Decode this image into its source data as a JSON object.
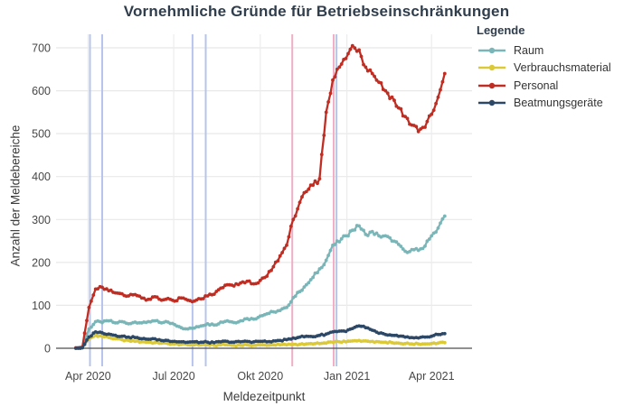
{
  "title": "Vornehmliche Gründe für Betriebseinschränkungen",
  "legend": {
    "title": "Legende"
  },
  "chart_data": {
    "type": "line",
    "title": "Vornehmliche Gründe für Betriebseinschränkungen",
    "xlabel": "Meldezeitpunkt",
    "ylabel": "Anzahl der Meldebereiche",
    "ylim": [
      0,
      700
    ],
    "yticks": [
      0,
      100,
      200,
      300,
      400,
      500,
      600,
      700
    ],
    "xlim": [
      "2020-02-27",
      "2021-05-14"
    ],
    "xticks": [
      {
        "label": "Apr 2020",
        "date": "2020-04-01"
      },
      {
        "label": "Jul 2020",
        "date": "2020-07-01"
      },
      {
        "label": "Okt 2020",
        "date": "2020-10-01"
      },
      {
        "label": "Jan 2021",
        "date": "2021-01-01"
      },
      {
        "label": "Apr 2021",
        "date": "2021-04-01"
      }
    ],
    "grid": true,
    "legend_position": "right",
    "event_lines": [
      {
        "date": "2020-04-03",
        "color": "#b7c4ed"
      },
      {
        "date": "2020-04-16",
        "color": "#b7c4ed"
      },
      {
        "date": "2020-07-21",
        "color": "#b7c4ed"
      },
      {
        "date": "2020-08-04",
        "color": "#b7c4ed"
      },
      {
        "date": "2020-11-04",
        "color": "#f2aec6"
      },
      {
        "date": "2020-12-18",
        "color": "#f2aec6"
      },
      {
        "date": "2020-12-21",
        "color": "#b7c4ed"
      }
    ],
    "x": [
      "2020-03-19",
      "2020-03-26",
      "2020-04-02",
      "2020-04-09",
      "2020-04-16",
      "2020-04-23",
      "2020-04-30",
      "2020-05-07",
      "2020-05-14",
      "2020-05-21",
      "2020-05-28",
      "2020-06-04",
      "2020-06-11",
      "2020-06-18",
      "2020-06-25",
      "2020-07-02",
      "2020-07-09",
      "2020-07-16",
      "2020-07-23",
      "2020-07-30",
      "2020-08-06",
      "2020-08-13",
      "2020-08-20",
      "2020-08-27",
      "2020-09-03",
      "2020-09-10",
      "2020-09-17",
      "2020-09-24",
      "2020-10-01",
      "2020-10-08",
      "2020-10-15",
      "2020-10-22",
      "2020-10-29",
      "2020-11-05",
      "2020-11-12",
      "2020-11-19",
      "2020-11-26",
      "2020-12-03",
      "2020-12-10",
      "2020-12-17",
      "2020-12-24",
      "2020-12-31",
      "2021-01-07",
      "2021-01-14",
      "2021-01-21",
      "2021-01-28",
      "2021-02-04",
      "2021-02-11",
      "2021-02-18",
      "2021-02-25",
      "2021-03-04",
      "2021-03-11",
      "2021-03-18",
      "2021-03-25",
      "2021-04-01",
      "2021-04-08",
      "2021-04-15"
    ],
    "series": [
      {
        "name": "Raum",
        "color": "#7ab6b8",
        "values": [
          0,
          2,
          45,
          62,
          60,
          64,
          59,
          62,
          57,
          61,
          59,
          62,
          64,
          59,
          61,
          55,
          48,
          45,
          47,
          52,
          57,
          54,
          61,
          64,
          60,
          64,
          69,
          68,
          75,
          80,
          85,
          88,
          95,
          118,
          132,
          148,
          165,
          185,
          205,
          240,
          248,
          262,
          275,
          285,
          265,
          272,
          262,
          262,
          250,
          242,
          226,
          230,
          228,
          238,
          262,
          280,
          308
        ]
      },
      {
        "name": "Verbrauchsmaterial",
        "color": "#dcc937",
        "values": [
          0,
          1,
          22,
          30,
          28,
          25,
          22,
          20,
          18,
          16,
          15,
          14,
          13,
          12,
          11,
          10,
          9,
          8,
          8,
          8,
          8,
          7,
          8,
          8,
          7,
          7,
          8,
          7,
          8,
          7,
          8,
          8,
          8,
          9,
          9,
          10,
          10,
          11,
          12,
          14,
          15,
          15,
          17,
          18,
          17,
          16,
          15,
          14,
          13,
          12,
          11,
          10,
          10,
          10,
          11,
          12,
          13
        ]
      },
      {
        "name": "Personal",
        "color": "#c02d22",
        "values": [
          1,
          3,
          95,
          138,
          142,
          134,
          129,
          127,
          122,
          125,
          117,
          114,
          120,
          112,
          116,
          110,
          117,
          112,
          110,
          115,
          122,
          126,
          140,
          148,
          145,
          152,
          156,
          150,
          158,
          168,
          190,
          215,
          240,
          300,
          340,
          365,
          380,
          395,
          550,
          625,
          655,
          675,
          705,
          695,
          655,
          640,
          620,
          600,
          585,
          560,
          540,
          520,
          505,
          515,
          545,
          585,
          640
        ]
      },
      {
        "name": "Beatmungsgeräte",
        "color": "#2d4866",
        "values": [
          0,
          1,
          26,
          38,
          36,
          33,
          30,
          28,
          26,
          25,
          22,
          21,
          22,
          18,
          18,
          16,
          15,
          14,
          15,
          14,
          14,
          13,
          15,
          16,
          14,
          15,
          16,
          15,
          16,
          15,
          17,
          18,
          20,
          24,
          26,
          28,
          27,
          30,
          33,
          38,
          40,
          39,
          46,
          52,
          48,
          42,
          35,
          32,
          30,
          28,
          26,
          25,
          24,
          26,
          28,
          32,
          34
        ]
      }
    ]
  }
}
